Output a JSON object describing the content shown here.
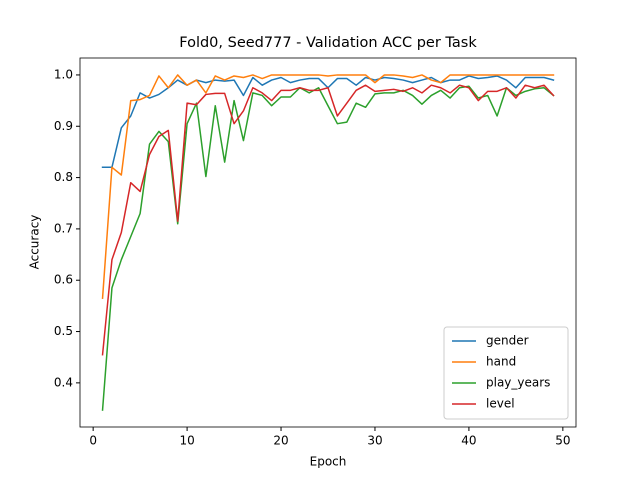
{
  "chart_data": {
    "type": "line",
    "title": "Fold0, Seed777 - Validation ACC per Task",
    "x_label": "Epoch",
    "y_label": "Accuracy",
    "x": [
      1,
      2,
      3,
      4,
      5,
      6,
      7,
      8,
      9,
      10,
      11,
      12,
      13,
      14,
      15,
      16,
      17,
      18,
      19,
      20,
      21,
      22,
      23,
      24,
      25,
      26,
      27,
      28,
      29,
      30,
      31,
      32,
      33,
      34,
      35,
      36,
      37,
      38,
      39,
      40,
      41,
      42,
      43,
      44,
      45,
      46,
      47,
      48,
      49
    ],
    "series": [
      {
        "name": "gender",
        "color": "#1f77b4",
        "values": [
          0.82,
          0.82,
          0.897,
          0.92,
          0.965,
          0.955,
          0.962,
          0.975,
          0.99,
          0.98,
          0.99,
          0.985,
          0.99,
          0.988,
          0.99,
          0.96,
          0.995,
          0.98,
          0.99,
          0.995,
          0.985,
          0.99,
          0.993,
          0.993,
          0.975,
          0.993,
          0.993,
          0.98,
          0.995,
          0.99,
          0.995,
          0.993,
          0.99,
          0.985,
          0.99,
          0.995,
          0.985,
          0.99,
          0.99,
          0.998,
          0.993,
          0.995,
          0.998,
          0.99,
          0.975,
          0.995,
          0.995,
          0.995,
          0.99
        ]
      },
      {
        "name": "hand",
        "color": "#ff7f0e",
        "values": [
          0.565,
          0.82,
          0.805,
          0.95,
          0.952,
          0.96,
          0.998,
          0.975,
          1.0,
          0.98,
          0.99,
          0.965,
          0.998,
          0.99,
          0.998,
          0.995,
          1.0,
          0.993,
          1.0,
          1.0,
          1.0,
          1.0,
          1.0,
          1.0,
          0.998,
          1.0,
          1.0,
          1.0,
          1.0,
          0.985,
          1.0,
          1.0,
          0.998,
          0.995,
          1.0,
          0.99,
          0.985,
          1.0,
          1.0,
          1.0,
          1.0,
          1.0,
          1.0,
          1.0,
          1.0,
          1.0,
          1.0,
          1.0,
          1.0
        ]
      },
      {
        "name": "play_years",
        "color": "#2ca02c",
        "values": [
          0.347,
          0.585,
          0.64,
          0.685,
          0.73,
          0.865,
          0.89,
          0.87,
          0.71,
          0.905,
          0.945,
          0.802,
          0.94,
          0.83,
          0.95,
          0.872,
          0.965,
          0.96,
          0.94,
          0.957,
          0.957,
          0.975,
          0.965,
          0.975,
          0.94,
          0.905,
          0.908,
          0.945,
          0.937,
          0.963,
          0.965,
          0.965,
          0.97,
          0.96,
          0.943,
          0.96,
          0.97,
          0.955,
          0.975,
          0.978,
          0.955,
          0.96,
          0.92,
          0.975,
          0.96,
          0.968,
          0.973,
          0.975,
          0.96
        ]
      },
      {
        "name": "level",
        "color": "#d62728",
        "values": [
          0.455,
          0.64,
          0.693,
          0.79,
          0.773,
          0.845,
          0.88,
          0.892,
          0.715,
          0.945,
          0.942,
          0.962,
          0.964,
          0.964,
          0.905,
          0.93,
          0.975,
          0.965,
          0.95,
          0.97,
          0.97,
          0.975,
          0.97,
          0.97,
          0.975,
          0.92,
          0.945,
          0.97,
          0.98,
          0.968,
          0.97,
          0.972,
          0.968,
          0.975,
          0.965,
          0.98,
          0.975,
          0.965,
          0.98,
          0.975,
          0.95,
          0.968,
          0.968,
          0.975,
          0.955,
          0.98,
          0.975,
          0.98,
          0.96
        ]
      }
    ],
    "xlim": [
      -1.4,
      51.4
    ],
    "ylim": [
      0.314,
      1.033
    ],
    "xticks": [
      0,
      10,
      20,
      30,
      40,
      50
    ],
    "yticks": [
      0.4,
      0.5,
      0.6,
      0.7,
      0.8,
      0.9,
      {
        "value": 1.0,
        "label": "1.0"
      }
    ],
    "legend": "lower right"
  }
}
